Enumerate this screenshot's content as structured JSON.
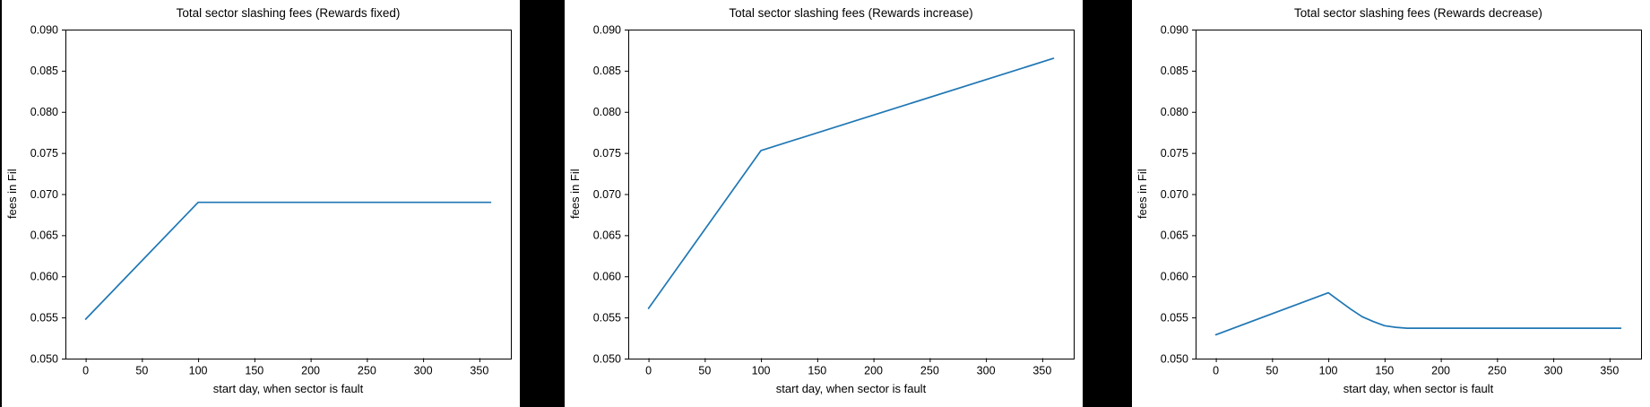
{
  "window": {
    "background": "#000000",
    "panel_background": "#ffffff",
    "axis_color": "#000000"
  },
  "chart_data": [
    {
      "type": "line",
      "title": "Total sector slashing fees (Rewards fixed)",
      "xlabel": "start day, when sector is fault",
      "ylabel": "fees in Fil",
      "line_color": "#1f77b4",
      "legend": "none",
      "grid": false,
      "xlim": [
        -18,
        378
      ],
      "ylim": [
        0.05,
        0.09
      ],
      "xticks": [
        "0",
        "50",
        "100",
        "150",
        "200",
        "250",
        "300",
        "350"
      ],
      "yticks": [
        "0.050",
        "0.055",
        "0.060",
        "0.065",
        "0.070",
        "0.075",
        "0.080",
        "0.085",
        "0.090"
      ],
      "x": [
        0,
        100,
        360
      ],
      "y": [
        0.0548,
        0.069,
        0.069
      ]
    },
    {
      "type": "line",
      "title": "Total sector slashing fees (Rewards increase)",
      "xlabel": "start day, when sector is fault",
      "ylabel": "fees in Fil",
      "line_color": "#1f77b4",
      "legend": "none",
      "grid": false,
      "xlim": [
        -18,
        378
      ],
      "ylim": [
        0.05,
        0.09
      ],
      "xticks": [
        "0",
        "50",
        "100",
        "150",
        "200",
        "250",
        "300",
        "350"
      ],
      "yticks": [
        "0.050",
        "0.055",
        "0.060",
        "0.065",
        "0.070",
        "0.075",
        "0.080",
        "0.085",
        "0.090"
      ],
      "x": [
        0,
        100,
        360
      ],
      "y": [
        0.0561,
        0.0753,
        0.0865
      ]
    },
    {
      "type": "line",
      "title": "Total sector slashing fees (Rewards decrease)",
      "xlabel": "start day, when sector is fault",
      "ylabel": "fees in Fil",
      "line_color": "#1f77b4",
      "legend": "none",
      "grid": false,
      "xlim": [
        -18,
        378
      ],
      "ylim": [
        0.05,
        0.09
      ],
      "xticks": [
        "0",
        "50",
        "100",
        "150",
        "200",
        "250",
        "300",
        "350"
      ],
      "yticks": [
        "0.050",
        "0.055",
        "0.060",
        "0.065",
        "0.070",
        "0.075",
        "0.080",
        "0.085",
        "0.090"
      ],
      "x": [
        0,
        100,
        110,
        120,
        130,
        140,
        150,
        160,
        170,
        185,
        360
      ],
      "y": [
        0.0529,
        0.058,
        0.057,
        0.056,
        0.0551,
        0.0545,
        0.054,
        0.0538,
        0.0537,
        0.0537,
        0.0537
      ]
    }
  ]
}
